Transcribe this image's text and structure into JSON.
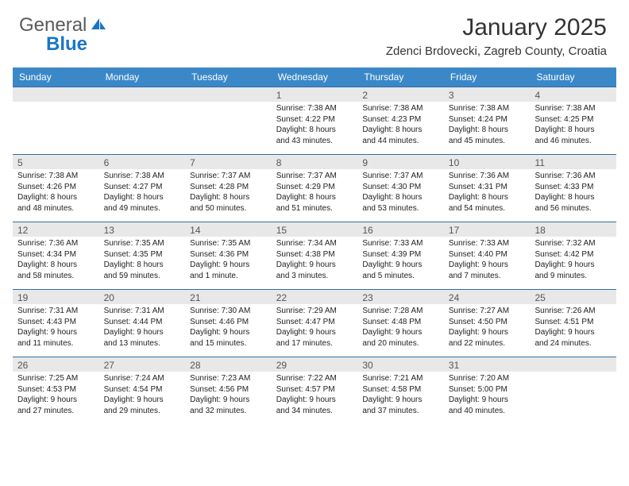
{
  "logo": {
    "text1": "General",
    "text2": "Blue"
  },
  "header": {
    "title": "January 2025",
    "location": "Zdenci Brdovecki, Zagreb County, Croatia"
  },
  "colors": {
    "header_bar": "#3b88c8",
    "week_border": "#2f6fa8",
    "daynum_bg": "#e8e8e8",
    "logo_gray": "#5a5a5a",
    "logo_blue": "#1976c5"
  },
  "dayNames": [
    "Sunday",
    "Monday",
    "Tuesday",
    "Wednesday",
    "Thursday",
    "Friday",
    "Saturday"
  ],
  "weeks": [
    [
      {
        "n": "",
        "lines": []
      },
      {
        "n": "",
        "lines": []
      },
      {
        "n": "",
        "lines": []
      },
      {
        "n": "1",
        "lines": [
          "Sunrise: 7:38 AM",
          "Sunset: 4:22 PM",
          "Daylight: 8 hours",
          "and 43 minutes."
        ]
      },
      {
        "n": "2",
        "lines": [
          "Sunrise: 7:38 AM",
          "Sunset: 4:23 PM",
          "Daylight: 8 hours",
          "and 44 minutes."
        ]
      },
      {
        "n": "3",
        "lines": [
          "Sunrise: 7:38 AM",
          "Sunset: 4:24 PM",
          "Daylight: 8 hours",
          "and 45 minutes."
        ]
      },
      {
        "n": "4",
        "lines": [
          "Sunrise: 7:38 AM",
          "Sunset: 4:25 PM",
          "Daylight: 8 hours",
          "and 46 minutes."
        ]
      }
    ],
    [
      {
        "n": "5",
        "lines": [
          "Sunrise: 7:38 AM",
          "Sunset: 4:26 PM",
          "Daylight: 8 hours",
          "and 48 minutes."
        ]
      },
      {
        "n": "6",
        "lines": [
          "Sunrise: 7:38 AM",
          "Sunset: 4:27 PM",
          "Daylight: 8 hours",
          "and 49 minutes."
        ]
      },
      {
        "n": "7",
        "lines": [
          "Sunrise: 7:37 AM",
          "Sunset: 4:28 PM",
          "Daylight: 8 hours",
          "and 50 minutes."
        ]
      },
      {
        "n": "8",
        "lines": [
          "Sunrise: 7:37 AM",
          "Sunset: 4:29 PM",
          "Daylight: 8 hours",
          "and 51 minutes."
        ]
      },
      {
        "n": "9",
        "lines": [
          "Sunrise: 7:37 AM",
          "Sunset: 4:30 PM",
          "Daylight: 8 hours",
          "and 53 minutes."
        ]
      },
      {
        "n": "10",
        "lines": [
          "Sunrise: 7:36 AM",
          "Sunset: 4:31 PM",
          "Daylight: 8 hours",
          "and 54 minutes."
        ]
      },
      {
        "n": "11",
        "lines": [
          "Sunrise: 7:36 AM",
          "Sunset: 4:33 PM",
          "Daylight: 8 hours",
          "and 56 minutes."
        ]
      }
    ],
    [
      {
        "n": "12",
        "lines": [
          "Sunrise: 7:36 AM",
          "Sunset: 4:34 PM",
          "Daylight: 8 hours",
          "and 58 minutes."
        ]
      },
      {
        "n": "13",
        "lines": [
          "Sunrise: 7:35 AM",
          "Sunset: 4:35 PM",
          "Daylight: 8 hours",
          "and 59 minutes."
        ]
      },
      {
        "n": "14",
        "lines": [
          "Sunrise: 7:35 AM",
          "Sunset: 4:36 PM",
          "Daylight: 9 hours",
          "and 1 minute."
        ]
      },
      {
        "n": "15",
        "lines": [
          "Sunrise: 7:34 AM",
          "Sunset: 4:38 PM",
          "Daylight: 9 hours",
          "and 3 minutes."
        ]
      },
      {
        "n": "16",
        "lines": [
          "Sunrise: 7:33 AM",
          "Sunset: 4:39 PM",
          "Daylight: 9 hours",
          "and 5 minutes."
        ]
      },
      {
        "n": "17",
        "lines": [
          "Sunrise: 7:33 AM",
          "Sunset: 4:40 PM",
          "Daylight: 9 hours",
          "and 7 minutes."
        ]
      },
      {
        "n": "18",
        "lines": [
          "Sunrise: 7:32 AM",
          "Sunset: 4:42 PM",
          "Daylight: 9 hours",
          "and 9 minutes."
        ]
      }
    ],
    [
      {
        "n": "19",
        "lines": [
          "Sunrise: 7:31 AM",
          "Sunset: 4:43 PM",
          "Daylight: 9 hours",
          "and 11 minutes."
        ]
      },
      {
        "n": "20",
        "lines": [
          "Sunrise: 7:31 AM",
          "Sunset: 4:44 PM",
          "Daylight: 9 hours",
          "and 13 minutes."
        ]
      },
      {
        "n": "21",
        "lines": [
          "Sunrise: 7:30 AM",
          "Sunset: 4:46 PM",
          "Daylight: 9 hours",
          "and 15 minutes."
        ]
      },
      {
        "n": "22",
        "lines": [
          "Sunrise: 7:29 AM",
          "Sunset: 4:47 PM",
          "Daylight: 9 hours",
          "and 17 minutes."
        ]
      },
      {
        "n": "23",
        "lines": [
          "Sunrise: 7:28 AM",
          "Sunset: 4:48 PM",
          "Daylight: 9 hours",
          "and 20 minutes."
        ]
      },
      {
        "n": "24",
        "lines": [
          "Sunrise: 7:27 AM",
          "Sunset: 4:50 PM",
          "Daylight: 9 hours",
          "and 22 minutes."
        ]
      },
      {
        "n": "25",
        "lines": [
          "Sunrise: 7:26 AM",
          "Sunset: 4:51 PM",
          "Daylight: 9 hours",
          "and 24 minutes."
        ]
      }
    ],
    [
      {
        "n": "26",
        "lines": [
          "Sunrise: 7:25 AM",
          "Sunset: 4:53 PM",
          "Daylight: 9 hours",
          "and 27 minutes."
        ]
      },
      {
        "n": "27",
        "lines": [
          "Sunrise: 7:24 AM",
          "Sunset: 4:54 PM",
          "Daylight: 9 hours",
          "and 29 minutes."
        ]
      },
      {
        "n": "28",
        "lines": [
          "Sunrise: 7:23 AM",
          "Sunset: 4:56 PM",
          "Daylight: 9 hours",
          "and 32 minutes."
        ]
      },
      {
        "n": "29",
        "lines": [
          "Sunrise: 7:22 AM",
          "Sunset: 4:57 PM",
          "Daylight: 9 hours",
          "and 34 minutes."
        ]
      },
      {
        "n": "30",
        "lines": [
          "Sunrise: 7:21 AM",
          "Sunset: 4:58 PM",
          "Daylight: 9 hours",
          "and 37 minutes."
        ]
      },
      {
        "n": "31",
        "lines": [
          "Sunrise: 7:20 AM",
          "Sunset: 5:00 PM",
          "Daylight: 9 hours",
          "and 40 minutes."
        ]
      },
      {
        "n": "",
        "lines": []
      }
    ]
  ]
}
